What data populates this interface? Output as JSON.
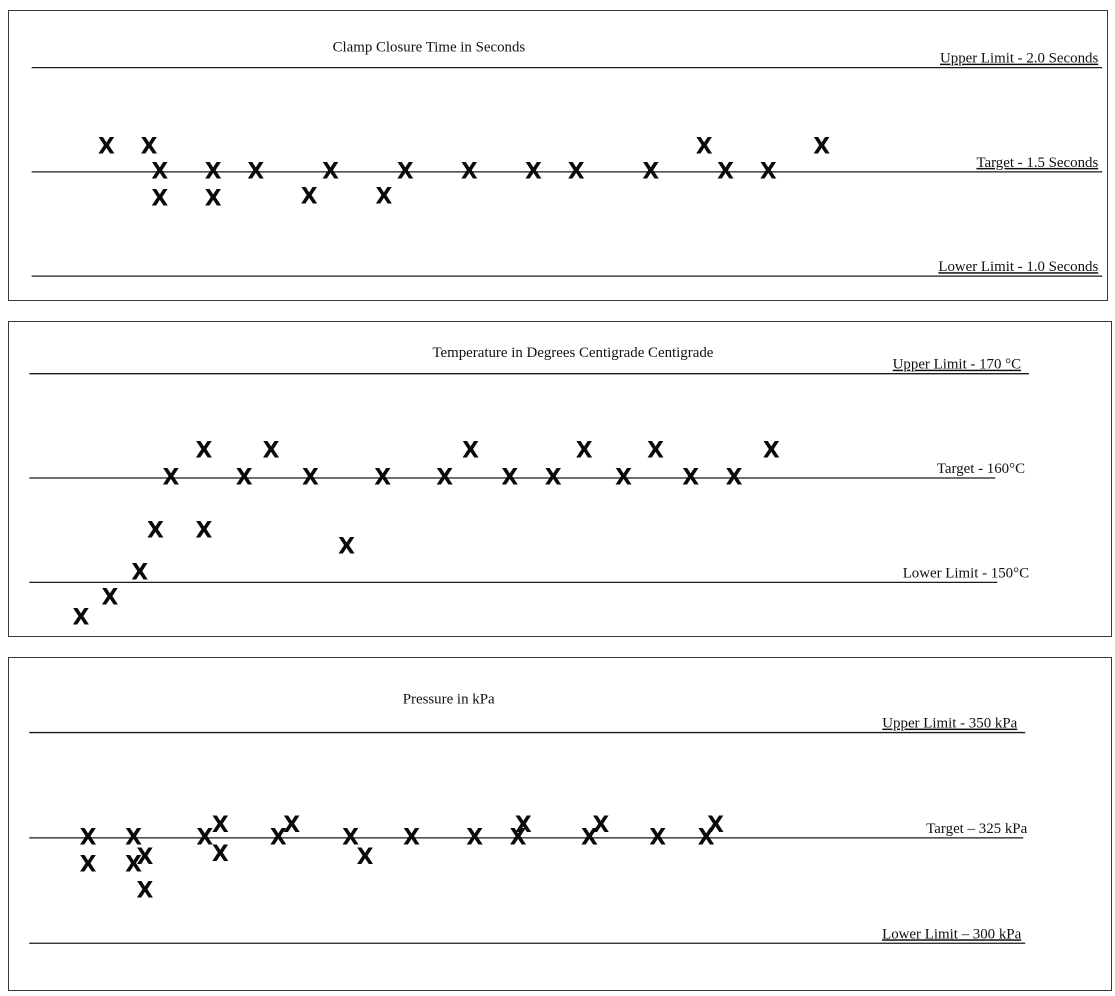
{
  "chart_data": [
    {
      "type": "scatter",
      "title": "Clamp Closure Time in Seconds",
      "lines": [
        {
          "name": "upper",
          "label": "Upper Limit - 2.0 Seconds",
          "value": 2.0
        },
        {
          "name": "target",
          "label": "Target - 1.5 Seconds",
          "value": 1.5
        },
        {
          "name": "lower",
          "label": "Lower Limit - 1.0 Seconds",
          "value": 1.0
        }
      ],
      "ylim": [
        0.93,
        2.12
      ],
      "xlim": [
        0,
        100
      ],
      "points": [
        {
          "x": 7,
          "y": 1.62
        },
        {
          "x": 11,
          "y": 1.62
        },
        {
          "x": 12,
          "y": 1.5
        },
        {
          "x": 12,
          "y": 1.37
        },
        {
          "x": 17,
          "y": 1.5
        },
        {
          "x": 17,
          "y": 1.37
        },
        {
          "x": 21,
          "y": 1.5
        },
        {
          "x": 26,
          "y": 1.38
        },
        {
          "x": 28,
          "y": 1.5
        },
        {
          "x": 33,
          "y": 1.38
        },
        {
          "x": 35,
          "y": 1.5
        },
        {
          "x": 41,
          "y": 1.5
        },
        {
          "x": 47,
          "y": 1.5
        },
        {
          "x": 51,
          "y": 1.5
        },
        {
          "x": 58,
          "y": 1.5
        },
        {
          "x": 63,
          "y": 1.62
        },
        {
          "x": 65,
          "y": 1.5
        },
        {
          "x": 69,
          "y": 1.5
        },
        {
          "x": 74,
          "y": 1.62
        }
      ]
    },
    {
      "type": "scatter",
      "title": "Temperature in Degrees Centigrade Centigrade",
      "lines": [
        {
          "name": "upper",
          "label": "Upper Limit -  170 °C",
          "value": 170
        },
        {
          "name": "target",
          "label": "Target - 160°C",
          "value": 160
        },
        {
          "name": "lower",
          "label": "Lower Limit - 150°C",
          "value": 150
        }
      ],
      "ylim": [
        145.8,
        173.5
      ],
      "xlim": [
        0,
        100
      ],
      "points": [
        {
          "x": 4.8,
          "y": 146.6
        },
        {
          "x": 7.6,
          "y": 148.5
        },
        {
          "x": 10.5,
          "y": 150.9
        },
        {
          "x": 12,
          "y": 154.9
        },
        {
          "x": 13.5,
          "y": 160
        },
        {
          "x": 16.7,
          "y": 154.9
        },
        {
          "x": 16.7,
          "y": 162.6
        },
        {
          "x": 20.6,
          "y": 160
        },
        {
          "x": 23.2,
          "y": 162.6
        },
        {
          "x": 27,
          "y": 160
        },
        {
          "x": 30.5,
          "y": 153.4
        },
        {
          "x": 34,
          "y": 160
        },
        {
          "x": 40,
          "y": 160
        },
        {
          "x": 42.5,
          "y": 162.6
        },
        {
          "x": 46.3,
          "y": 160
        },
        {
          "x": 50.5,
          "y": 160
        },
        {
          "x": 53.5,
          "y": 162.6
        },
        {
          "x": 57.3,
          "y": 160
        },
        {
          "x": 60.4,
          "y": 162.6
        },
        {
          "x": 63.8,
          "y": 160
        },
        {
          "x": 68,
          "y": 160
        },
        {
          "x": 71.6,
          "y": 162.6
        }
      ]
    },
    {
      "type": "scatter",
      "title": "Pressure in kPa",
      "lines": [
        {
          "name": "upper",
          "label": "Upper Limit -  350 kPa",
          "value": 350
        },
        {
          "name": "target",
          "label": "Target – 325 kPa",
          "value": 325
        },
        {
          "name": "lower",
          "label": "Lower Limit – 300 kPa",
          "value": 300
        }
      ],
      "ylim": [
        293,
        362
      ],
      "xlim": [
        0,
        100
      ],
      "points": [
        {
          "x": 5.5,
          "y": 325
        },
        {
          "x": 5.5,
          "y": 318.6
        },
        {
          "x": 9.9,
          "y": 325
        },
        {
          "x": 9.9,
          "y": 318.6
        },
        {
          "x": 11,
          "y": 320.3
        },
        {
          "x": 11,
          "y": 312.4
        },
        {
          "x": 16.8,
          "y": 325
        },
        {
          "x": 18.3,
          "y": 328
        },
        {
          "x": 18.3,
          "y": 321.1
        },
        {
          "x": 23.9,
          "y": 325
        },
        {
          "x": 25.2,
          "y": 328
        },
        {
          "x": 30.9,
          "y": 325
        },
        {
          "x": 32.3,
          "y": 320.3
        },
        {
          "x": 36.8,
          "y": 325
        },
        {
          "x": 42.9,
          "y": 325
        },
        {
          "x": 47.1,
          "y": 325
        },
        {
          "x": 47.6,
          "y": 328
        },
        {
          "x": 54,
          "y": 325
        },
        {
          "x": 55.1,
          "y": 328
        },
        {
          "x": 60.6,
          "y": 325
        },
        {
          "x": 65.3,
          "y": 325
        },
        {
          "x": 66.2,
          "y": 328
        }
      ]
    }
  ]
}
